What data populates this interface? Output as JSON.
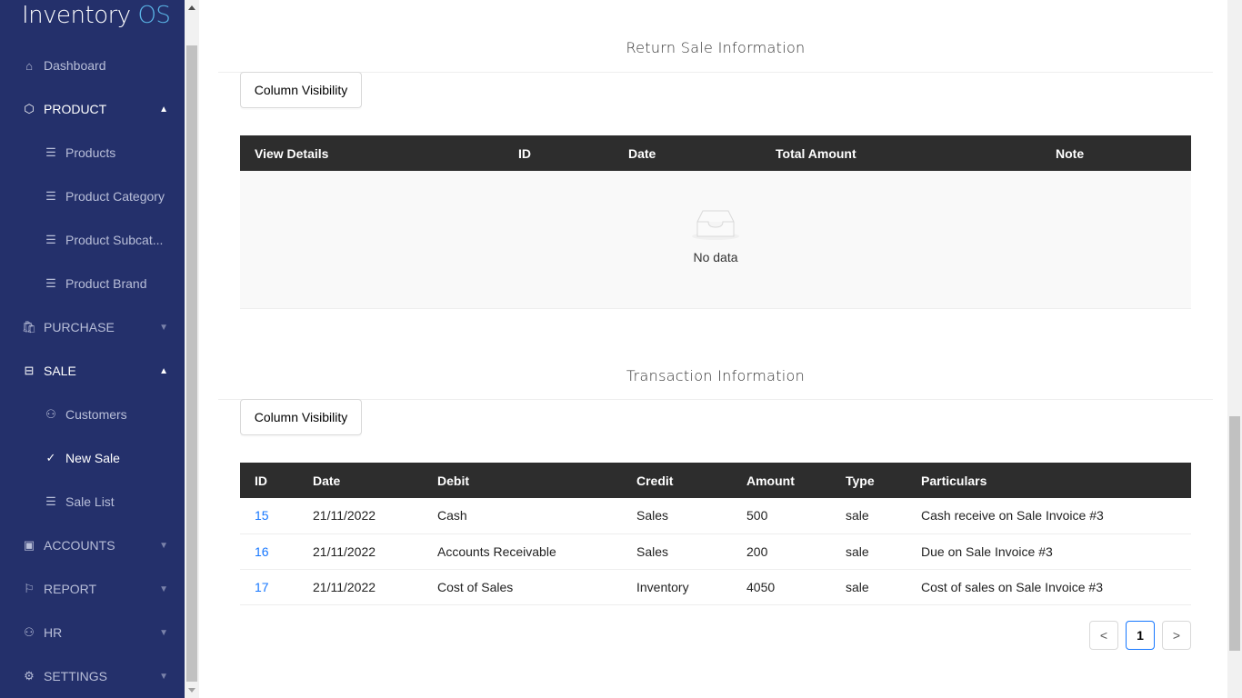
{
  "app": {
    "name_main": "Inventory",
    "name_accent": "OS"
  },
  "sidebar": {
    "items": [
      {
        "label": "Dashboard",
        "icon": "home-icon"
      },
      {
        "label": "PRODUCT",
        "icon": "box-icon"
      },
      {
        "label": "Products",
        "icon": "list-icon"
      },
      {
        "label": "Product Category",
        "icon": "list-icon"
      },
      {
        "label": "Product Subcat...",
        "icon": "list-icon"
      },
      {
        "label": "Product Brand",
        "icon": "list-icon"
      },
      {
        "label": "PURCHASE",
        "icon": "bag-icon"
      },
      {
        "label": "SALE",
        "icon": "minus-square-icon"
      },
      {
        "label": "Customers",
        "icon": "user-icon"
      },
      {
        "label": "New Sale",
        "icon": "check-icon"
      },
      {
        "label": "Sale List",
        "icon": "list-icon"
      },
      {
        "label": "ACCOUNTS",
        "icon": "wallet-icon"
      },
      {
        "label": "REPORT",
        "icon": "flag-icon"
      },
      {
        "label": "HR",
        "icon": "user-icon"
      },
      {
        "label": "SETTINGS",
        "icon": "gear-icon"
      }
    ]
  },
  "return_sale": {
    "title": "Return Sale Information",
    "column_visibility": "Column Visibility",
    "columns": [
      "View Details",
      "ID",
      "Date",
      "Total Amount",
      "Note"
    ],
    "empty_text": "No data"
  },
  "transactions": {
    "title": "Transaction Information",
    "column_visibility": "Column Visibility",
    "columns": [
      "ID",
      "Date",
      "Debit",
      "Credit",
      "Amount",
      "Type",
      "Particulars"
    ],
    "rows": [
      [
        "15",
        "21/11/2022",
        "Cash",
        "Sales",
        "500",
        "sale",
        "Cash receive on Sale Invoice #3"
      ],
      [
        "16",
        "21/11/2022",
        "Accounts Receivable",
        "Sales",
        "200",
        "sale",
        "Due on Sale Invoice #3"
      ],
      [
        "17",
        "21/11/2022",
        "Cost of Sales",
        "Inventory",
        "4050",
        "sale",
        "Cost of sales on Sale Invoice #3"
      ]
    ]
  },
  "pagination": {
    "current": "1",
    "prev": "<",
    "next": ">"
  },
  "colors": {
    "sidebar": "#24306b",
    "accent": "#1677ff",
    "header": "#2d2d2d"
  }
}
